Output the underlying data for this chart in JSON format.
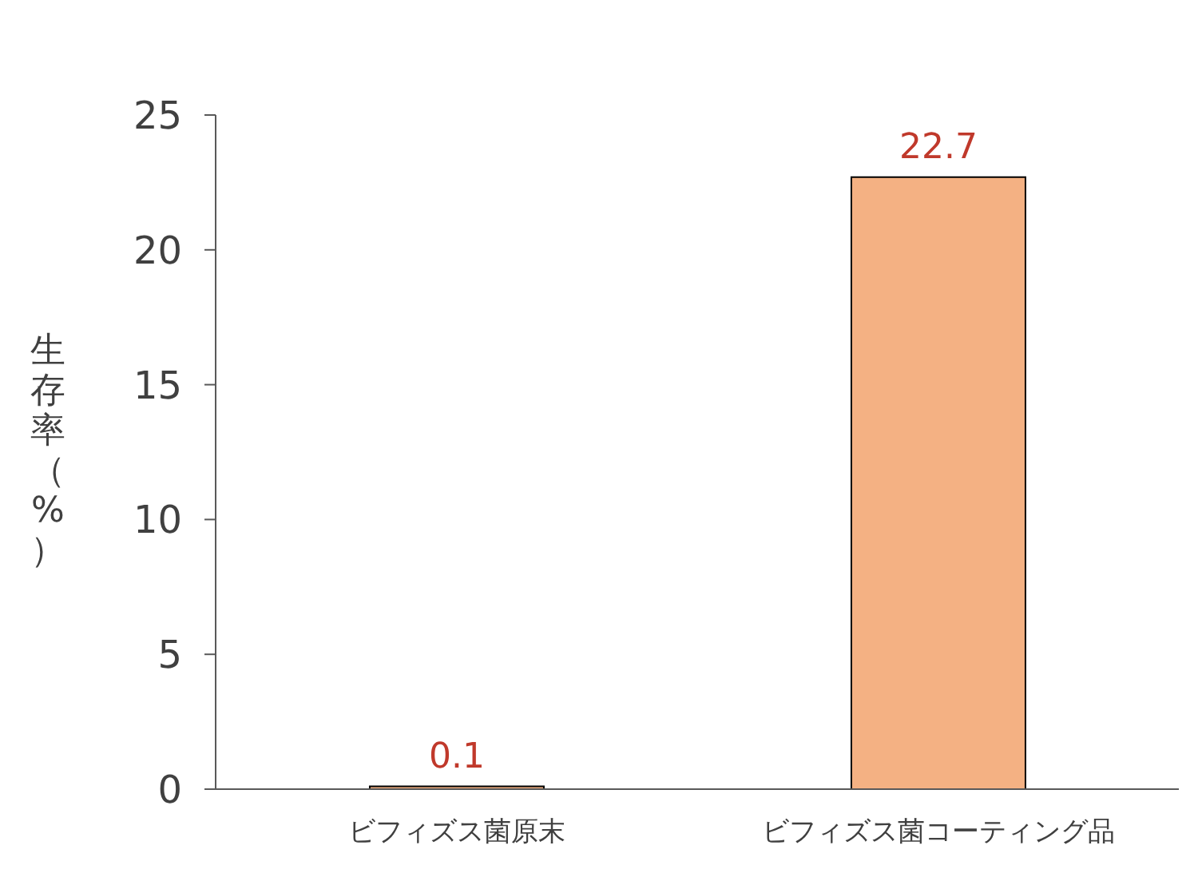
{
  "chart_data": {
    "type": "bar",
    "ylabel": "生存率（%）",
    "categories": [
      "ビフィズス菌原末",
      "ビフィズス菌コーティング品"
    ],
    "values": [
      0.1,
      22.7
    ],
    "color": "#f4b183",
    "ylim": [
      0,
      25
    ],
    "yticks": [
      0,
      5,
      10,
      15,
      20,
      25
    ],
    "data_labels": true,
    "grid": false,
    "legend": false
  }
}
